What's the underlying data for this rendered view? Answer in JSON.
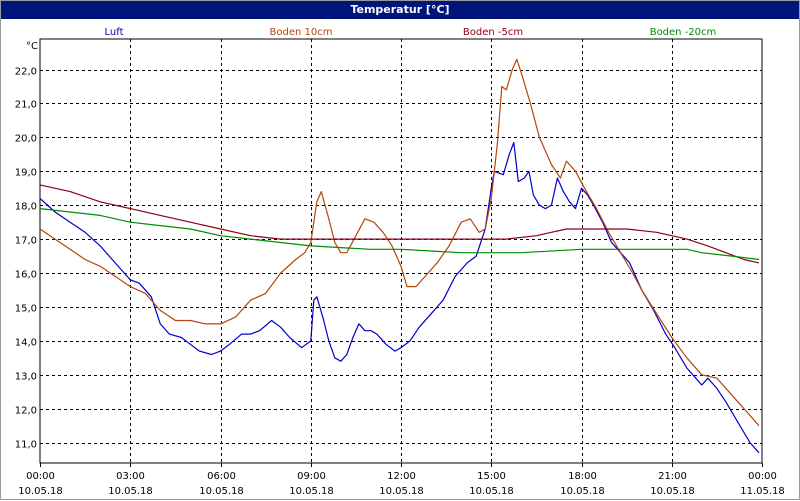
{
  "window": {
    "title": "Temperatur [°C]"
  },
  "chart_data": {
    "type": "line",
    "title": "Temperatur [°C]",
    "ylabel": "°C",
    "xlabel": "",
    "xlim": [
      "10.05.18 00:00",
      "11.05.18 00:00"
    ],
    "ylim": [
      10.4,
      22.9
    ],
    "grid": true,
    "legend_position": "top",
    "yticks": [
      {
        "value": 11.0,
        "label": "11,0"
      },
      {
        "value": 12.0,
        "label": "12,0"
      },
      {
        "value": 13.0,
        "label": "13,0"
      },
      {
        "value": 14.0,
        "label": "14,0"
      },
      {
        "value": 15.0,
        "label": "15,0"
      },
      {
        "value": 16.0,
        "label": "16,0"
      },
      {
        "value": 17.0,
        "label": "17,0"
      },
      {
        "value": 18.0,
        "label": "18,0"
      },
      {
        "value": 19.0,
        "label": "19,0"
      },
      {
        "value": 20.0,
        "label": "20,0"
      },
      {
        "value": 21.0,
        "label": "21,0"
      },
      {
        "value": 22.0,
        "label": "22,0"
      }
    ],
    "xticks": [
      {
        "hour": 0,
        "time": "00:00",
        "date": "10.05.18"
      },
      {
        "hour": 3,
        "time": "03:00",
        "date": "10.05.18"
      },
      {
        "hour": 6,
        "time": "06:00",
        "date": "10.05.18"
      },
      {
        "hour": 9,
        "time": "09:00",
        "date": "10.05.18"
      },
      {
        "hour": 12,
        "time": "12:00",
        "date": "10.05.18"
      },
      {
        "hour": 15,
        "time": "15:00",
        "date": "10.05.18"
      },
      {
        "hour": 18,
        "time": "18:00",
        "date": "10.05.18"
      },
      {
        "hour": 21,
        "time": "21:00",
        "date": "10.05.18"
      },
      {
        "hour": 24,
        "time": "00:00",
        "date": "11.05.18"
      }
    ],
    "series": [
      {
        "name": "Luft",
        "color": "#0000c8",
        "points": [
          [
            0.0,
            18.2
          ],
          [
            0.5,
            17.8
          ],
          [
            1.0,
            17.5
          ],
          [
            1.5,
            17.2
          ],
          [
            2.0,
            16.8
          ],
          [
            2.5,
            16.3
          ],
          [
            3.0,
            15.8
          ],
          [
            3.3,
            15.7
          ],
          [
            3.7,
            15.3
          ],
          [
            4.0,
            14.5
          ],
          [
            4.3,
            14.2
          ],
          [
            4.7,
            14.1
          ],
          [
            5.0,
            13.9
          ],
          [
            5.3,
            13.7
          ],
          [
            5.7,
            13.6
          ],
          [
            6.0,
            13.7
          ],
          [
            6.3,
            13.9
          ],
          [
            6.7,
            14.2
          ],
          [
            7.0,
            14.2
          ],
          [
            7.3,
            14.3
          ],
          [
            7.7,
            14.6
          ],
          [
            8.0,
            14.4
          ],
          [
            8.3,
            14.1
          ],
          [
            8.7,
            13.8
          ],
          [
            9.0,
            14.0
          ],
          [
            9.1,
            15.2
          ],
          [
            9.2,
            15.3
          ],
          [
            9.4,
            14.7
          ],
          [
            9.6,
            14.0
          ],
          [
            9.8,
            13.5
          ],
          [
            10.0,
            13.4
          ],
          [
            10.2,
            13.6
          ],
          [
            10.4,
            14.1
          ],
          [
            10.6,
            14.5
          ],
          [
            10.8,
            14.3
          ],
          [
            11.0,
            14.3
          ],
          [
            11.2,
            14.2
          ],
          [
            11.5,
            13.9
          ],
          [
            11.8,
            13.7
          ],
          [
            12.0,
            13.8
          ],
          [
            12.3,
            14.0
          ],
          [
            12.6,
            14.4
          ],
          [
            13.0,
            14.8
          ],
          [
            13.4,
            15.2
          ],
          [
            13.8,
            15.9
          ],
          [
            14.2,
            16.3
          ],
          [
            14.5,
            16.5
          ],
          [
            14.8,
            17.3
          ],
          [
            15.0,
            18.5
          ],
          [
            15.1,
            19.0
          ],
          [
            15.4,
            18.9
          ],
          [
            15.6,
            19.5
          ],
          [
            15.75,
            19.85
          ],
          [
            15.9,
            18.7
          ],
          [
            16.1,
            18.8
          ],
          [
            16.25,
            19.0
          ],
          [
            16.4,
            18.3
          ],
          [
            16.6,
            18.0
          ],
          [
            16.8,
            17.9
          ],
          [
            17.0,
            18.0
          ],
          [
            17.2,
            18.8
          ],
          [
            17.4,
            18.4
          ],
          [
            17.6,
            18.1
          ],
          [
            17.8,
            17.9
          ],
          [
            18.0,
            18.5
          ],
          [
            18.2,
            18.3
          ],
          [
            18.4,
            18.0
          ],
          [
            18.7,
            17.5
          ],
          [
            19.0,
            16.9
          ],
          [
            19.3,
            16.6
          ],
          [
            19.6,
            16.3
          ],
          [
            20.0,
            15.5
          ],
          [
            20.4,
            14.9
          ],
          [
            20.8,
            14.2
          ],
          [
            21.1,
            13.8
          ],
          [
            21.5,
            13.2
          ],
          [
            21.8,
            12.9
          ],
          [
            22.0,
            12.7
          ],
          [
            22.2,
            12.9
          ],
          [
            22.5,
            12.6
          ],
          [
            22.8,
            12.2
          ],
          [
            23.2,
            11.6
          ],
          [
            23.6,
            11.0
          ],
          [
            23.9,
            10.7
          ]
        ]
      },
      {
        "name": "Boden 10cm",
        "color": "#b4460a",
        "points": [
          [
            0.0,
            17.3
          ],
          [
            0.5,
            17.0
          ],
          [
            1.0,
            16.7
          ],
          [
            1.5,
            16.4
          ],
          [
            2.0,
            16.2
          ],
          [
            2.5,
            15.9
          ],
          [
            3.0,
            15.6
          ],
          [
            3.5,
            15.4
          ],
          [
            4.0,
            14.9
          ],
          [
            4.5,
            14.6
          ],
          [
            5.0,
            14.6
          ],
          [
            5.5,
            14.5
          ],
          [
            6.0,
            14.5
          ],
          [
            6.5,
            14.7
          ],
          [
            7.0,
            15.2
          ],
          [
            7.5,
            15.4
          ],
          [
            8.0,
            16.0
          ],
          [
            8.5,
            16.4
          ],
          [
            8.8,
            16.6
          ],
          [
            9.0,
            16.9
          ],
          [
            9.2,
            18.1
          ],
          [
            9.35,
            18.4
          ],
          [
            9.6,
            17.6
          ],
          [
            9.8,
            16.9
          ],
          [
            10.0,
            16.6
          ],
          [
            10.2,
            16.6
          ],
          [
            10.5,
            17.1
          ],
          [
            10.8,
            17.6
          ],
          [
            11.1,
            17.5
          ],
          [
            11.4,
            17.2
          ],
          [
            11.7,
            16.8
          ],
          [
            12.0,
            16.2
          ],
          [
            12.2,
            15.6
          ],
          [
            12.5,
            15.6
          ],
          [
            12.8,
            15.9
          ],
          [
            13.2,
            16.3
          ],
          [
            13.6,
            16.8
          ],
          [
            14.0,
            17.5
          ],
          [
            14.3,
            17.6
          ],
          [
            14.6,
            17.2
          ],
          [
            14.8,
            17.3
          ],
          [
            15.0,
            18.2
          ],
          [
            15.2,
            19.8
          ],
          [
            15.35,
            21.5
          ],
          [
            15.5,
            21.4
          ],
          [
            15.7,
            22.0
          ],
          [
            15.85,
            22.3
          ],
          [
            16.0,
            21.9
          ],
          [
            16.3,
            21.0
          ],
          [
            16.6,
            20.0
          ],
          [
            17.0,
            19.2
          ],
          [
            17.3,
            18.8
          ],
          [
            17.5,
            19.3
          ],
          [
            17.8,
            19.0
          ],
          [
            18.1,
            18.5
          ],
          [
            18.5,
            17.9
          ],
          [
            18.9,
            17.2
          ],
          [
            19.3,
            16.6
          ],
          [
            19.7,
            16.0
          ],
          [
            20.0,
            15.5
          ],
          [
            20.5,
            14.8
          ],
          [
            21.0,
            14.1
          ],
          [
            21.5,
            13.5
          ],
          [
            22.0,
            13.0
          ],
          [
            22.5,
            12.9
          ],
          [
            23.0,
            12.4
          ],
          [
            23.5,
            11.9
          ],
          [
            23.9,
            11.5
          ]
        ]
      },
      {
        "name": "Boden -5cm",
        "color": "#8c0014",
        "points": [
          [
            0.0,
            18.6
          ],
          [
            1.0,
            18.4
          ],
          [
            2.0,
            18.1
          ],
          [
            3.0,
            17.9
          ],
          [
            4.0,
            17.7
          ],
          [
            5.0,
            17.5
          ],
          [
            6.0,
            17.3
          ],
          [
            7.0,
            17.1
          ],
          [
            8.0,
            17.0
          ],
          [
            10.0,
            17.0
          ],
          [
            12.0,
            17.0
          ],
          [
            14.0,
            17.0
          ],
          [
            15.5,
            17.0
          ],
          [
            16.5,
            17.1
          ],
          [
            17.0,
            17.2
          ],
          [
            17.5,
            17.3
          ],
          [
            18.5,
            17.3
          ],
          [
            19.5,
            17.3
          ],
          [
            20.5,
            17.2
          ],
          [
            21.5,
            17.0
          ],
          [
            22.2,
            16.8
          ],
          [
            22.8,
            16.6
          ],
          [
            23.4,
            16.4
          ],
          [
            23.9,
            16.3
          ]
        ]
      },
      {
        "name": "Boden -20cm",
        "color": "#008c00",
        "points": [
          [
            0.0,
            17.9
          ],
          [
            1.0,
            17.8
          ],
          [
            2.0,
            17.7
          ],
          [
            3.0,
            17.5
          ],
          [
            4.0,
            17.4
          ],
          [
            5.0,
            17.3
          ],
          [
            6.0,
            17.1
          ],
          [
            7.0,
            17.0
          ],
          [
            8.0,
            16.9
          ],
          [
            9.0,
            16.8
          ],
          [
            10.0,
            16.75
          ],
          [
            11.0,
            16.7
          ],
          [
            12.0,
            16.7
          ],
          [
            13.0,
            16.65
          ],
          [
            14.0,
            16.6
          ],
          [
            16.0,
            16.6
          ],
          [
            18.0,
            16.7
          ],
          [
            20.0,
            16.7
          ],
          [
            21.5,
            16.7
          ],
          [
            22.0,
            16.6
          ],
          [
            23.0,
            16.5
          ],
          [
            23.9,
            16.4
          ]
        ]
      }
    ]
  }
}
